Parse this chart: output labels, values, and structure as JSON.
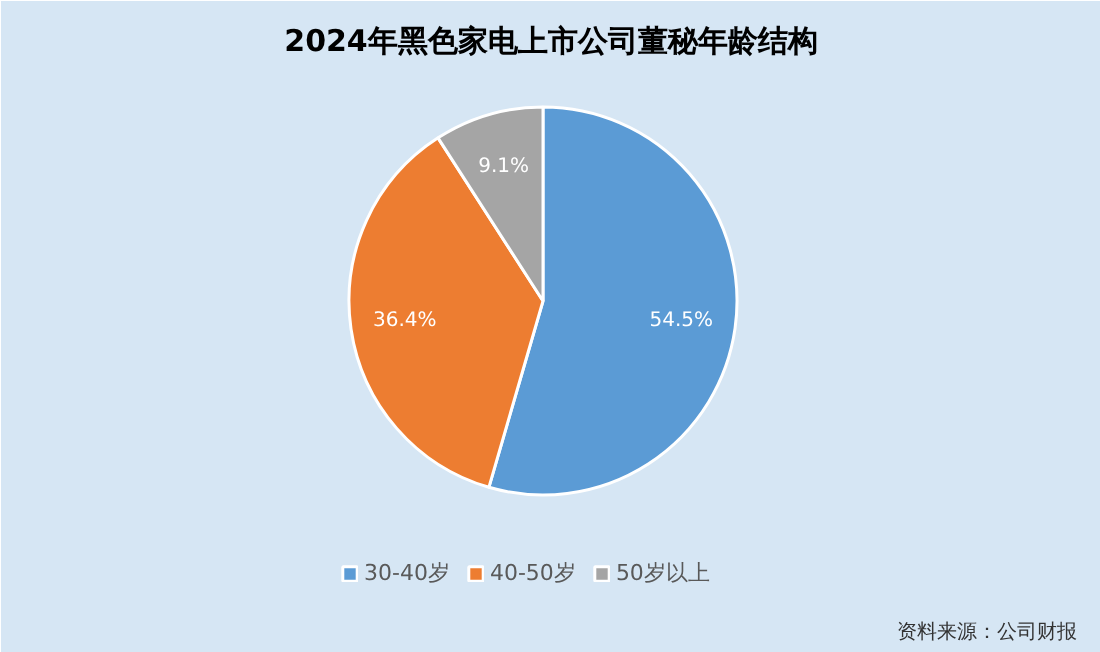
{
  "chart_data": {
    "type": "pie",
    "title": "2024年黑色家电上市公司董秘年龄结构",
    "categories": [
      "30-40岁",
      "40-50岁",
      "50岁以上"
    ],
    "values": [
      54.5,
      36.4,
      9.1
    ],
    "colors": [
      "#5b9bd5",
      "#ed7d31",
      "#a5a5a5"
    ],
    "value_labels": [
      "54.5%",
      "36.4%",
      "9.1%"
    ],
    "legend": "bottom",
    "annotations": [
      "资料来源：公司财报"
    ]
  }
}
